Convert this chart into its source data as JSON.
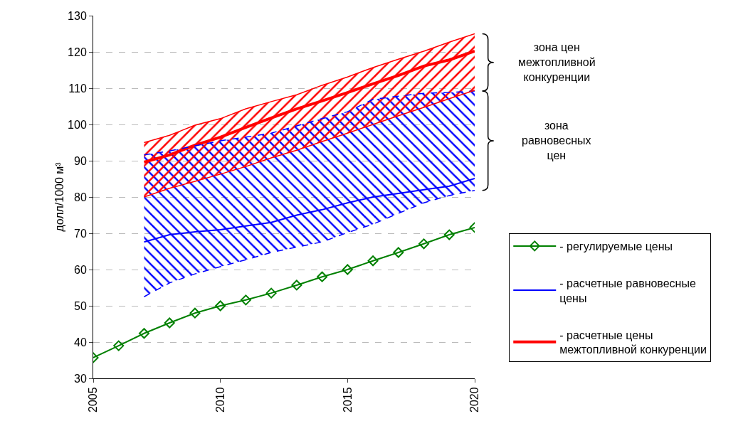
{
  "chart_data": {
    "type": "line",
    "ylabel": "долл/1000 м³",
    "xlim": [
      2005,
      2020
    ],
    "xticks": [
      2005,
      2010,
      2015,
      2020
    ],
    "ylim": [
      30,
      130
    ],
    "yticks": [
      30,
      40,
      50,
      60,
      70,
      80,
      90,
      100,
      110,
      120,
      130
    ],
    "grid": "y",
    "legend": "right",
    "annotations": [
      "зона цен межтопливной конкуренции",
      "зона равновесных цен"
    ],
    "series": [
      {
        "name": "- регулируемые цены",
        "color": "#008000",
        "marker": "diamond",
        "x": [
          2005,
          2006,
          2007,
          2008,
          2009,
          2010,
          2011,
          2012,
          2013,
          2014,
          2015,
          2016,
          2017,
          2018,
          2019,
          2020
        ],
        "values": [
          35.7,
          39.0,
          42.4,
          45.3,
          48.0,
          50.0,
          51.6,
          53.5,
          55.7,
          58.0,
          60.0,
          62.4,
          64.7,
          67.1,
          69.6,
          71.6
        ]
      },
      {
        "name": "- расчетные равновесные цены",
        "color": "#0000ff",
        "x": [
          2007,
          2008,
          2009,
          2010,
          2011,
          2012,
          2013,
          2014,
          2015,
          2016,
          2017,
          2018,
          2019,
          2020
        ],
        "values": [
          67.6,
          69.6,
          70.4,
          71,
          72,
          73,
          75,
          76.5,
          78.4,
          80,
          81,
          82,
          83,
          85.1
        ],
        "lower": [
          52.5,
          56.3,
          58.8,
          60.8,
          62.7,
          64.7,
          66.2,
          67.6,
          70.2,
          72.5,
          75.5,
          78.4,
          80.4,
          81.8
        ],
        "upper": [
          91.6,
          92.7,
          94.1,
          95.5,
          96.5,
          97.6,
          99.6,
          101.6,
          103.5,
          106.9,
          107.8,
          108.6,
          108.8,
          109.2
        ]
      },
      {
        "name": "- расчетные цены межтопливной конкуренции",
        "color": "#ff0000",
        "x": [
          2007,
          2008,
          2009,
          2010,
          2011,
          2012,
          2013,
          2014,
          2015,
          2016,
          2017,
          2018,
          2019,
          2020
        ],
        "values": [
          89.6,
          91.6,
          94.3,
          96.5,
          99.2,
          101.8,
          104.3,
          106.5,
          108.8,
          111.2,
          113.5,
          116.1,
          117.8,
          120.2
        ],
        "lower": [
          80,
          82.4,
          84.3,
          86.3,
          88.4,
          90.8,
          92.9,
          95.3,
          97.6,
          100,
          102.4,
          104.7,
          107.1,
          109.4
        ],
        "upper": [
          95,
          97,
          99.8,
          101.6,
          104.3,
          106.3,
          108.2,
          110.8,
          113.1,
          115.7,
          118,
          120.2,
          122.7,
          125
        ]
      },
      {
        "color": "#0000ff",
        "line_style": "dashed",
        "x": [
          2007,
          2008,
          2009,
          2010,
          2011,
          2012,
          2013,
          2014,
          2015,
          2016,
          2017,
          2018,
          2019,
          2020
        ],
        "values": [
          52.5,
          56.3,
          58.8,
          60.8,
          62.7,
          64.7,
          66.2,
          67.6,
          70.2,
          72.5,
          75.5,
          78.4,
          80.4,
          81.8
        ]
      },
      {
        "color": "#0000ff",
        "line_style": "dashed",
        "x": [
          2007,
          2008,
          2009,
          2010,
          2011,
          2012,
          2013,
          2014,
          2015,
          2016,
          2017,
          2018,
          2019,
          2020
        ],
        "values": [
          91.6,
          92.7,
          94.1,
          95.5,
          96.5,
          97.6,
          99.6,
          101.6,
          103.5,
          106.9,
          107.8,
          108.6,
          108.8,
          109.2
        ]
      },
      {
        "color": "#ff0000",
        "x": [
          2007,
          2008,
          2009,
          2010,
          2011,
          2012,
          2013,
          2014,
          2015,
          2016,
          2017,
          2018,
          2019,
          2020
        ],
        "values": [
          80,
          82.4,
          84.3,
          86.3,
          88.4,
          90.8,
          92.9,
          95.3,
          97.6,
          100,
          102.4,
          104.7,
          107.1,
          109.4
        ]
      },
      {
        "color": "#ff0000",
        "x": [
          2007,
          2008,
          2009,
          2010,
          2011,
          2012,
          2013,
          2014,
          2015,
          2016,
          2017,
          2018,
          2019,
          2020
        ],
        "values": [
          95,
          97,
          99.8,
          101.6,
          104.3,
          106.3,
          108.2,
          110.8,
          113.1,
          115.7,
          118,
          120.2,
          122.7,
          125
        ]
      }
    ]
  }
}
